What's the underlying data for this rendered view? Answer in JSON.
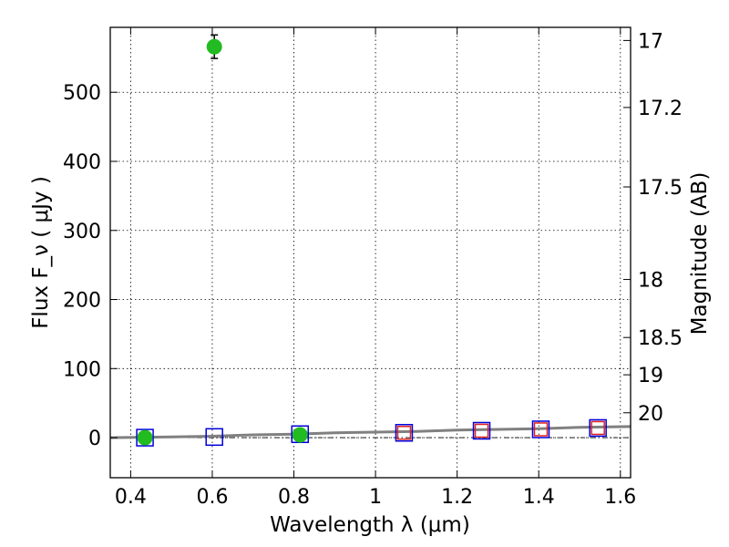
{
  "chart_data": {
    "type": "scatter",
    "xlabel": "Wavelength  λ (μm)",
    "ylabel": "Flux  F_ν  ( μJy )",
    "y2label": "Magnitude (AB)",
    "xlim": [
      0.35,
      1.625
    ],
    "ylim": [
      -58,
      594
    ],
    "grid": true,
    "x_ticks": [
      0.4,
      0.6,
      0.8,
      1.0,
      1.2,
      1.4,
      1.6
    ],
    "x_tick_labels": [
      "0.4",
      "0.6",
      "0.8",
      "1",
      "1.2",
      "1.4",
      "1.6"
    ],
    "y_ticks": [
      0,
      100,
      200,
      300,
      400,
      500
    ],
    "y_tick_labels": [
      "0",
      "100",
      "200",
      "300",
      "400",
      "500"
    ],
    "y2_ticks": [
      {
        "label": "17",
        "flux": 575
      },
      {
        "label": "17.2",
        "flux": 478
      },
      {
        "label": "17.5",
        "flux": 363
      },
      {
        "label": "18",
        "flux": 229
      },
      {
        "label": "18.5",
        "flux": 145
      },
      {
        "label": "19",
        "flux": 91
      },
      {
        "label": "20",
        "flux": 36
      }
    ],
    "series": [
      {
        "marker": "circle",
        "color": "#22bb22",
        "points": [
          {
            "x": 0.435,
            "y": 0,
            "yerr": 0
          },
          {
            "x": 0.605,
            "y": 566,
            "yerr": 17
          },
          {
            "x": 0.815,
            "y": 4,
            "yerr": 0
          }
        ]
      },
      {
        "marker": "square",
        "color": "#0000dd",
        "points": [
          {
            "x": 0.435,
            "y": 0
          },
          {
            "x": 0.605,
            "y": 1
          },
          {
            "x": 0.815,
            "y": 5
          },
          {
            "x": 1.07,
            "y": 7
          },
          {
            "x": 1.26,
            "y": 10
          },
          {
            "x": 1.405,
            "y": 12
          },
          {
            "x": 1.545,
            "y": 14
          }
        ]
      },
      {
        "marker": "square",
        "color": "#dd2222",
        "points": [
          {
            "x": 1.07,
            "y": 7
          },
          {
            "x": 1.26,
            "y": 10
          },
          {
            "x": 1.405,
            "y": 12
          },
          {
            "x": 1.545,
            "y": 14
          }
        ]
      },
      {
        "marker": "line",
        "color": "#808080",
        "points": [
          {
            "x": 0.35,
            "y": 0
          },
          {
            "x": 0.5,
            "y": 1
          },
          {
            "x": 0.6,
            "y": 2
          },
          {
            "x": 0.7,
            "y": 4
          },
          {
            "x": 0.8,
            "y": 5
          },
          {
            "x": 0.9,
            "y": 7
          },
          {
            "x": 1.0,
            "y": 8
          },
          {
            "x": 1.1,
            "y": 9
          },
          {
            "x": 1.2,
            "y": 11
          },
          {
            "x": 1.3,
            "y": 12
          },
          {
            "x": 1.4,
            "y": 13
          },
          {
            "x": 1.5,
            "y": 15
          },
          {
            "x": 1.625,
            "y": 16
          }
        ]
      }
    ]
  }
}
